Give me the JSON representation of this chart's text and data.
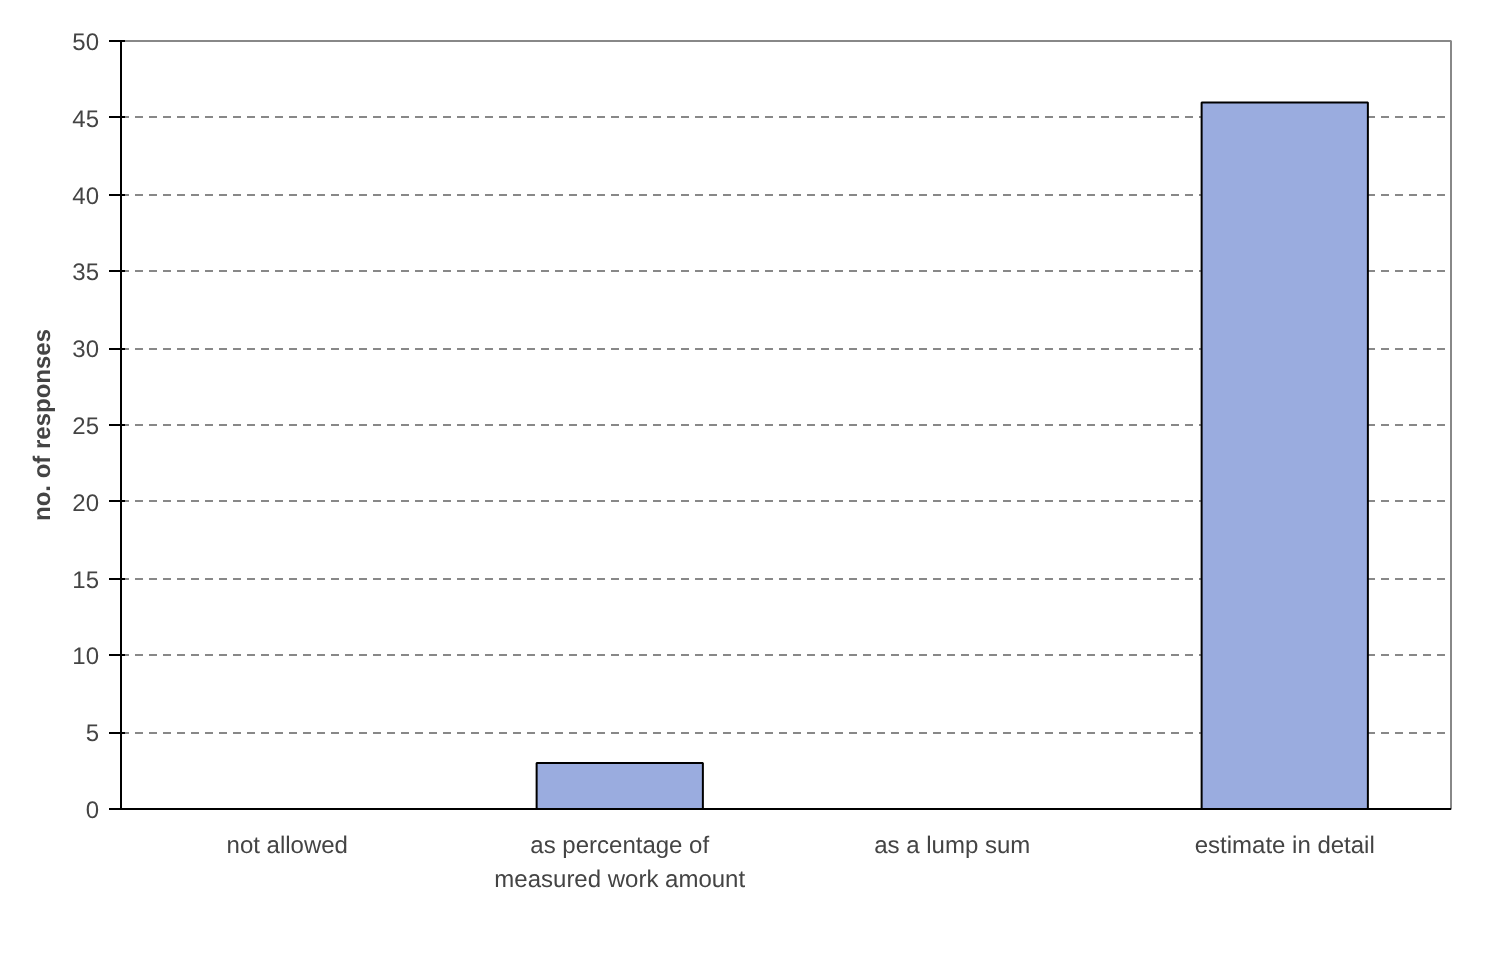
{
  "chart_data": {
    "type": "bar",
    "ylabel": "no. of responses",
    "categories": [
      "not allowed",
      "as percentage of measured work amount",
      "as a lump sum",
      "estimate in detail"
    ],
    "values": [
      0,
      3,
      0,
      46
    ],
    "color": "#9aacdf",
    "ylim": [
      0,
      50
    ],
    "yticks": [
      0,
      5,
      10,
      15,
      20,
      25,
      30,
      35,
      40,
      45,
      50
    ],
    "grid": "y"
  }
}
